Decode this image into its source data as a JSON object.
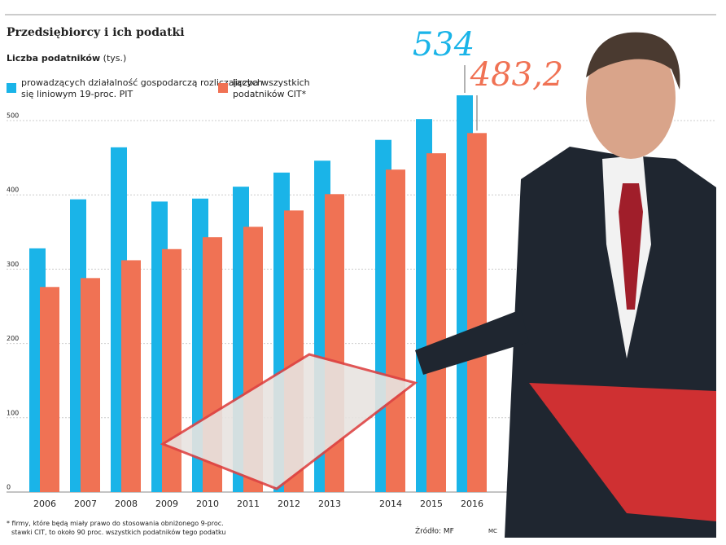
{
  "chart_data": {
    "type": "bar",
    "title": "Przedsiębiorcy i ich podatki",
    "y_label": "Liczba podatników",
    "y_unit": "(tys.)",
    "categories": [
      "2006",
      "2007",
      "2008",
      "2009",
      "2010",
      "2011",
      "2012",
      "2013",
      "2014",
      "2015",
      "2016"
    ],
    "series": [
      {
        "name": "prowadzących działalność gospodarczą rozliczających się liniowym 19-proc. PIT",
        "color": "#1ab4e8",
        "values": [
          328,
          394,
          464,
          391,
          395,
          411,
          430,
          446,
          474,
          502,
          534
        ],
        "value_labels": [
          null,
          null,
          null,
          null,
          null,
          null,
          null,
          null,
          null,
          null,
          "534"
        ]
      },
      {
        "name": "liczba wszystkich podatników CIT*",
        "color": "#f07254",
        "values": [
          276,
          288,
          312,
          327,
          343,
          357,
          379,
          401,
          434,
          456,
          483.2
        ],
        "value_labels": [
          null,
          null,
          null,
          null,
          null,
          null,
          null,
          null,
          null,
          null,
          "483,2"
        ]
      }
    ],
    "ylim": [
      0,
      500
    ],
    "yticks": [
      0,
      100,
      200,
      300,
      400,
      500
    ],
    "grid": true,
    "footnote": "* firmy, które będą miały prawo do stosowania obniżonego 9-proc. stawki CIT, to około 90 proc. wszystkich podatników tego podatku",
    "source": "Źródło: MF",
    "credit": "MC"
  }
}
